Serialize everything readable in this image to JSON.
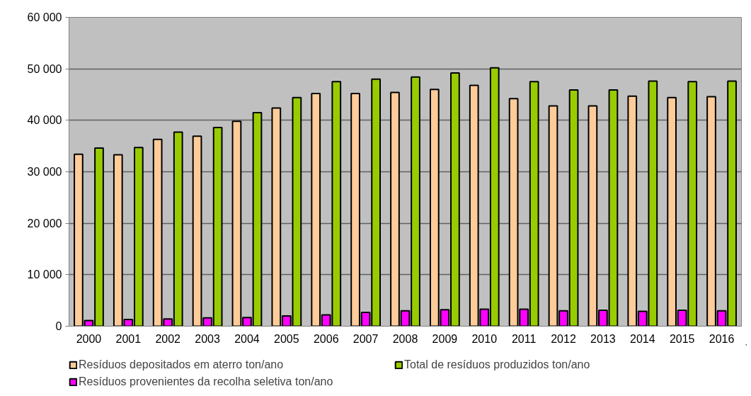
{
  "chart_data": {
    "type": "bar",
    "categories": [
      "2000",
      "2001",
      "2002",
      "2003",
      "2004",
      "2005",
      "2006",
      "2007",
      "2008",
      "2009",
      "2010",
      "2011",
      "2012",
      "2013",
      "2014",
      "2015",
      "2016"
    ],
    "series": [
      {
        "name": "Resíduos depositados em aterro ton/ano",
        "color": "#ffcc99",
        "values": [
          33400,
          33300,
          36300,
          36900,
          39800,
          42400,
          45200,
          45200,
          45400,
          46000,
          46800,
          44200,
          42800,
          42800,
          44700,
          44400,
          44600
        ]
      },
      {
        "name": "Resíduos provenientes da recolha seletiva ton/ano",
        "color": "#ff00ff",
        "values": [
          1100,
          1300,
          1400,
          1600,
          1700,
          2000,
          2200,
          2700,
          3000,
          3200,
          3300,
          3300,
          3000,
          3100,
          2900,
          3100,
          3000
        ]
      },
      {
        "name": "Total de resíduos produzidos ton/ano",
        "color": "#99cc00",
        "values": [
          34600,
          34700,
          37700,
          38600,
          41500,
          44400,
          47500,
          48000,
          48400,
          49200,
          50200,
          47500,
          45900,
          45900,
          47600,
          47500,
          47600
        ]
      }
    ],
    "ylim": [
      0,
      60000
    ],
    "yticks": [
      {
        "value": 0,
        "label": "0"
      },
      {
        "value": 10000,
        "label": "10 000"
      },
      {
        "value": 20000,
        "label": "20 000"
      },
      {
        "value": 30000,
        "label": "30 000"
      },
      {
        "value": 40000,
        "label": "40 000"
      },
      {
        "value": 50000,
        "label": "50 000"
      },
      {
        "value": 60000,
        "label": "60 000"
      }
    ],
    "grid": "y",
    "legend": "bottom"
  }
}
